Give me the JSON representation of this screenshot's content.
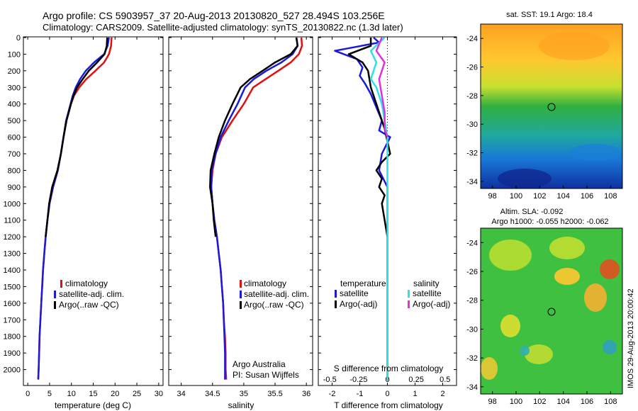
{
  "header": {
    "line1": "Argo profile: CS 5903957_37 20-Aug-2013 20130820_527 28.494S 103.256E",
    "line2": "Climatology: CARS2009. Satellite-adjusted climatology: synTS_20130822.nc (1.3d later)"
  },
  "colors": {
    "red": "#e01010",
    "blue": "#1a1adc",
    "black": "#000000",
    "cyan": "#30e0e8",
    "magenta": "#e030e0"
  },
  "chart_data": [
    {
      "id": "temperature",
      "type": "line",
      "xlabel": "temperature (deg C)",
      "ylabel": "",
      "xlim": [
        -1,
        31
      ],
      "ylim": [
        2100,
        0
      ],
      "xticks": [
        "0",
        "5",
        "10",
        "15",
        "20",
        "25",
        "30"
      ],
      "yticks": [
        "0",
        "100",
        "200",
        "300",
        "400",
        "500",
        "600",
        "700",
        "800",
        "900",
        "1000",
        "1100",
        "1200",
        "1300",
        "1400",
        "1500",
        "1600",
        "1700",
        "1800",
        "1900",
        "2000"
      ],
      "legend": [
        "climatology",
        "satellite-adj. clim.",
        "Argo(..raw -QC)"
      ],
      "series": [
        {
          "name": "climatology",
          "color_key": "red",
          "points": [
            [
              19.2,
              0
            ],
            [
              19.1,
              50
            ],
            [
              18.6,
              100
            ],
            [
              17.5,
              150
            ],
            [
              15.5,
              200
            ],
            [
              13.4,
              250
            ],
            [
              11.8,
              300
            ],
            [
              10.6,
              350
            ],
            [
              9.9,
              400
            ],
            [
              9.4,
              450
            ],
            [
              8.8,
              500
            ],
            [
              8.2,
              600
            ],
            [
              7.6,
              700
            ],
            [
              6.9,
              800
            ],
            [
              5.8,
              900
            ],
            [
              5.0,
              1000
            ],
            [
              4.5,
              1100
            ],
            [
              4.1,
              1200
            ],
            [
              3.8,
              1300
            ],
            [
              3.5,
              1400
            ],
            [
              3.3,
              1500
            ],
            [
              3.1,
              1600
            ],
            [
              2.9,
              1700
            ],
            [
              2.7,
              1800
            ],
            [
              2.6,
              1900
            ],
            [
              2.5,
              2000
            ],
            [
              2.4,
              2060
            ]
          ]
        },
        {
          "name": "satellite-adj. clim.",
          "color_key": "blue",
          "points": [
            [
              18.6,
              0
            ],
            [
              18.3,
              50
            ],
            [
              17.5,
              100
            ],
            [
              15.2,
              150
            ],
            [
              13.3,
              200
            ],
            [
              12.0,
              250
            ],
            [
              11.0,
              300
            ],
            [
              10.3,
              350
            ],
            [
              9.8,
              400
            ],
            [
              9.3,
              450
            ],
            [
              8.8,
              500
            ],
            [
              8.2,
              600
            ],
            [
              7.6,
              700
            ],
            [
              6.9,
              800
            ],
            [
              5.8,
              900
            ],
            [
              5.0,
              1000
            ],
            [
              4.5,
              1100
            ],
            [
              4.1,
              1200
            ],
            [
              3.8,
              1300
            ],
            [
              3.5,
              1400
            ],
            [
              3.3,
              1500
            ],
            [
              3.1,
              1600
            ],
            [
              2.9,
              1700
            ],
            [
              2.7,
              1800
            ],
            [
              2.6,
              1900
            ],
            [
              2.5,
              2000
            ],
            [
              2.4,
              2060
            ]
          ]
        },
        {
          "name": "Argo(..raw -QC)",
          "color_key": "black",
          "points": [
            [
              18.2,
              0
            ],
            [
              18.1,
              50
            ],
            [
              17.6,
              100
            ],
            [
              15.9,
              150
            ],
            [
              14.0,
              200
            ],
            [
              12.6,
              250
            ],
            [
              11.3,
              300
            ],
            [
              10.5,
              350
            ],
            [
              9.9,
              400
            ],
            [
              9.4,
              450
            ],
            [
              8.9,
              500
            ],
            [
              8.2,
              600
            ],
            [
              7.6,
              700
            ],
            [
              6.8,
              800
            ],
            [
              5.6,
              900
            ],
            [
              4.9,
              1000
            ],
            [
              4.5,
              1100
            ],
            [
              4.1,
              1200
            ]
          ]
        }
      ]
    },
    {
      "id": "salinity",
      "type": "line",
      "xlabel": "salinity",
      "xlim": [
        33.8,
        36.1
      ],
      "ylim": [
        2100,
        0
      ],
      "xticks": [
        "34",
        "34.5",
        "35",
        "35.5",
        "36"
      ],
      "legend": [
        "climatology",
        "satellite-adj. clim.",
        "Argo(..raw -QC)"
      ],
      "annotations": [
        "Argo Australia",
        "PI: Susan Wijffels"
      ],
      "series": [
        {
          "name": "climatology",
          "color_key": "red",
          "points": [
            [
              35.92,
              0
            ],
            [
              35.93,
              50
            ],
            [
              35.88,
              100
            ],
            [
              35.75,
              150
            ],
            [
              35.55,
              200
            ],
            [
              35.35,
              250
            ],
            [
              35.15,
              300
            ],
            [
              35.0,
              400
            ],
            [
              34.82,
              500
            ],
            [
              34.65,
              600
            ],
            [
              34.55,
              700
            ],
            [
              34.5,
              800
            ],
            [
              34.48,
              900
            ],
            [
              34.5,
              1000
            ],
            [
              34.53,
              1100
            ],
            [
              34.57,
              1200
            ],
            [
              34.6,
              1300
            ],
            [
              34.63,
              1400
            ],
            [
              34.65,
              1500
            ],
            [
              34.67,
              1600
            ],
            [
              34.68,
              1700
            ],
            [
              34.7,
              1800
            ],
            [
              34.71,
              1900
            ],
            [
              34.71,
              2000
            ],
            [
              34.72,
              2060
            ]
          ]
        },
        {
          "name": "satellite-adj. clim.",
          "color_key": "blue",
          "points": [
            [
              35.84,
              0
            ],
            [
              35.86,
              50
            ],
            [
              35.78,
              100
            ],
            [
              35.6,
              150
            ],
            [
              35.36,
              200
            ],
            [
              35.16,
              250
            ],
            [
              35.02,
              300
            ],
            [
              34.9,
              400
            ],
            [
              34.76,
              500
            ],
            [
              34.63,
              600
            ],
            [
              34.55,
              700
            ],
            [
              34.49,
              800
            ],
            [
              34.48,
              900
            ],
            [
              34.5,
              1000
            ],
            [
              34.53,
              1100
            ],
            [
              34.57,
              1200
            ],
            [
              34.6,
              1300
            ],
            [
              34.63,
              1400
            ],
            [
              34.65,
              1500
            ],
            [
              34.67,
              1600
            ],
            [
              34.68,
              1700
            ],
            [
              34.69,
              1800
            ],
            [
              34.7,
              1900
            ],
            [
              34.7,
              2000
            ],
            [
              34.7,
              2060
            ]
          ]
        },
        {
          "name": "Argo(..raw -QC)",
          "color_key": "black",
          "points": [
            [
              35.84,
              0
            ],
            [
              35.86,
              50
            ],
            [
              35.75,
              100
            ],
            [
              35.5,
              150
            ],
            [
              35.3,
              200
            ],
            [
              35.1,
              250
            ],
            [
              34.95,
              300
            ],
            [
              34.82,
              400
            ],
            [
              34.7,
              500
            ],
            [
              34.6,
              600
            ],
            [
              34.53,
              700
            ],
            [
              34.47,
              800
            ],
            [
              34.46,
              900
            ],
            [
              34.5,
              1000
            ],
            [
              34.52,
              1100
            ],
            [
              34.55,
              1200
            ]
          ]
        }
      ]
    },
    {
      "id": "differences",
      "type": "line",
      "xlabel": "T difference from climatology",
      "xlabel2": "S difference from climatology",
      "xlim": [
        -2.5,
        2.5
      ],
      "ylim": [
        2100,
        0
      ],
      "xticks_bottom": [
        "-2",
        "-1",
        "0",
        "1",
        "2"
      ],
      "xticks_top": [
        "-0.5",
        "-0.25",
        "0",
        "0.25",
        "0.5"
      ],
      "legend_temperature": {
        "title": "temperature",
        "items": [
          "satellite",
          "Argo(-adj)"
        ]
      },
      "legend_salinity": {
        "title": "salinity",
        "items": [
          "satellite",
          "Argo(-adj)"
        ]
      },
      "series": [
        {
          "name": "temperature satellite",
          "color_key": "blue",
          "points": [
            [
              -0.5,
              0
            ],
            [
              -0.3,
              30
            ],
            [
              -1.9,
              80
            ],
            [
              -1.1,
              130
            ],
            [
              -0.9,
              180
            ],
            [
              -1.0,
              230
            ],
            [
              -0.8,
              280
            ],
            [
              -0.6,
              340
            ],
            [
              -0.4,
              420
            ],
            [
              -0.2,
              500
            ],
            [
              -0.3,
              560
            ],
            [
              0.1,
              600
            ],
            [
              -0.2,
              700
            ],
            [
              -0.3,
              800
            ],
            [
              0.0,
              900
            ],
            [
              0.0,
              1000
            ],
            [
              0.0,
              1100
            ],
            [
              0.0,
              1400
            ],
            [
              0.0,
              2060
            ]
          ]
        },
        {
          "name": "temperature Argo(-adj)",
          "color_key": "black",
          "points": [
            [
              -0.6,
              0
            ],
            [
              -0.6,
              50
            ],
            [
              -1.4,
              100
            ],
            [
              -0.9,
              150
            ],
            [
              -0.7,
              200
            ],
            [
              -0.6,
              300
            ],
            [
              -0.4,
              400
            ],
            [
              -0.2,
              500
            ],
            [
              -0.1,
              550
            ],
            [
              0.1,
              700
            ],
            [
              -0.2,
              750
            ],
            [
              -0.4,
              800
            ],
            [
              -0.2,
              850
            ],
            [
              -0.3,
              900
            ],
            [
              -0.1,
              950
            ],
            [
              -0.2,
              1000
            ],
            [
              -0.1,
              1100
            ],
            [
              0.0,
              1200
            ]
          ]
        },
        {
          "name": "salinity satellite",
          "color_key": "cyan",
          "points": [
            [
              -0.1,
              0
            ],
            [
              -0.6,
              80
            ],
            [
              -0.4,
              150
            ],
            [
              -0.6,
              250
            ],
            [
              -0.4,
              300
            ],
            [
              -0.2,
              400
            ],
            [
              -0.1,
              500
            ],
            [
              0.0,
              600
            ],
            [
              0.0,
              800
            ],
            [
              0.0,
              1000
            ],
            [
              0.0,
              1400
            ],
            [
              0.0,
              2060
            ]
          ]
        },
        {
          "name": "salinity Argo(-adj)",
          "color_key": "magenta",
          "points": [
            [
              -0.2,
              0
            ],
            [
              -0.4,
              80
            ],
            [
              -0.1,
              150
            ],
            [
              -0.3,
              250
            ],
            [
              -0.2,
              350
            ],
            [
              -0.1,
              450
            ],
            [
              -0.1,
              550
            ],
            [
              0.0,
              600
            ]
          ]
        }
      ]
    },
    {
      "id": "sst-map",
      "type": "heatmap",
      "title": "sat. SST: 19.1  Argo: 18.4",
      "xticks": [
        "98",
        "100",
        "102",
        "104",
        "106",
        "108"
      ],
      "yticks": [
        "-24",
        "-26",
        "-28",
        "-30",
        "-32",
        "-34"
      ],
      "xlim": [
        97,
        109
      ],
      "ylim": [
        -34.5,
        -23
      ]
    },
    {
      "id": "sla-map",
      "type": "heatmap",
      "title": "Altim. SLA: -0.092",
      "subtitle": "Argo h1000: -0.055 h2000: -0.062",
      "xticks": [
        "98",
        "100",
        "102",
        "104",
        "106",
        "108"
      ],
      "yticks": [
        "-24",
        "-26",
        "-28",
        "-30",
        "-32",
        "-34"
      ],
      "xlim": [
        97,
        109
      ],
      "ylim": [
        -34.5,
        -23
      ]
    }
  ],
  "sidebar_stamp": "IMOS 29-Aug-2013 20:00:42"
}
